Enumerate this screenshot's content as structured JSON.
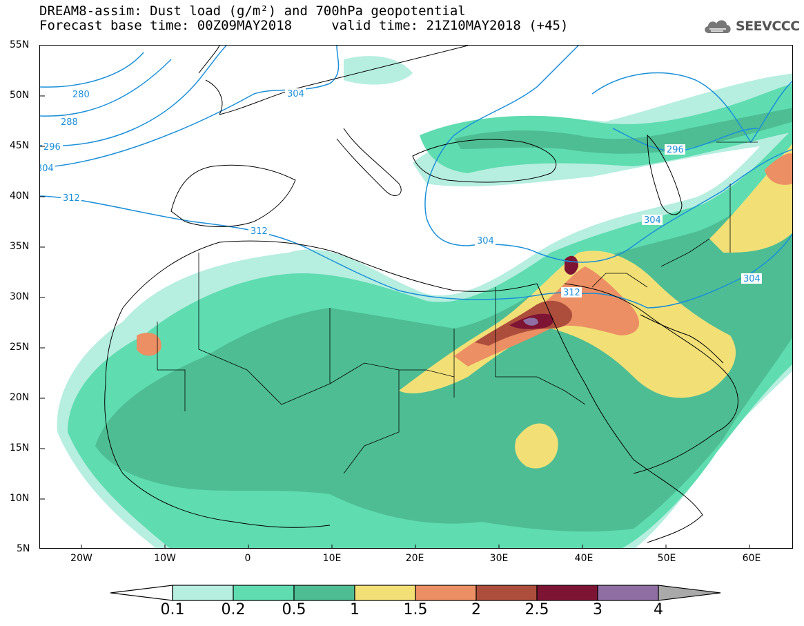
{
  "header": {
    "line1": "DREAM8-assim: Dust load (g/m²) and 700hPa geopotential",
    "line2": "Forecast base time: 00Z09MAY2018     valid time: 21Z10MAY2018 (+45)",
    "logo_text": "SEEVCCC",
    "logo_icon": "cloud-icon"
  },
  "map": {
    "lat_labels": [
      "55N",
      "50N",
      "45N",
      "40N",
      "35N",
      "30N",
      "25N",
      "20N",
      "15N",
      "10N",
      "5N"
    ],
    "lon_labels": [
      "20W",
      "10W",
      "0",
      "10E",
      "20E",
      "30E",
      "40E",
      "50E",
      "60E"
    ],
    "geopotential_labels": [
      "280",
      "288",
      "296",
      "304",
      "312",
      "304",
      "312",
      "304",
      "304",
      "312",
      "296",
      "304"
    ],
    "colors": {
      "contour": "#1a8fd8",
      "coast": "#000000"
    }
  },
  "colorbar": {
    "labels": [
      "0.1",
      "0.2",
      "0.5",
      "1",
      "1.5",
      "2",
      "2.5",
      "3",
      "4"
    ],
    "colors": [
      "#b6eee0",
      "#5fdcb0",
      "#4ebd93",
      "#f2e077",
      "#ec8f64",
      "#ad4e3c",
      "#7e1434",
      "#8f6fa3",
      "#a9a9a9"
    ]
  }
}
